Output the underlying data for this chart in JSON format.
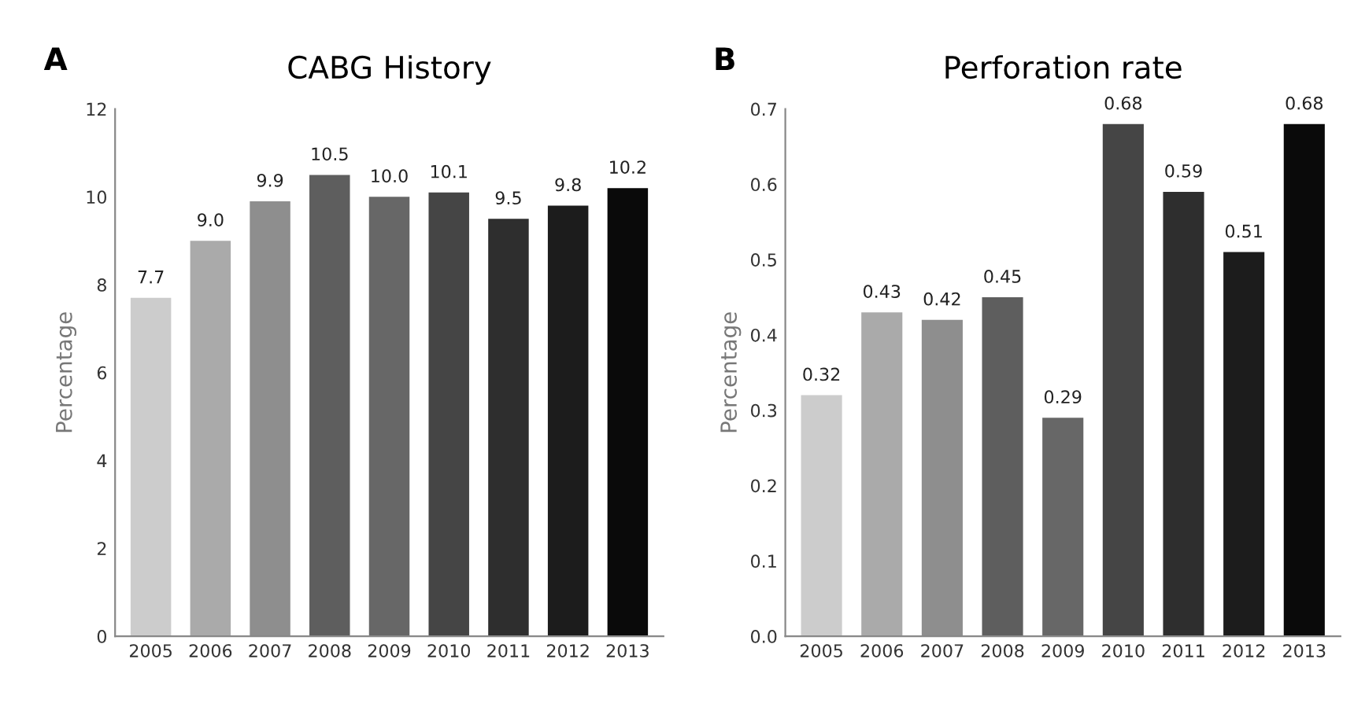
{
  "chart_data": [
    {
      "type": "bar",
      "title": "CABG History",
      "ylabel": "Percentage",
      "annotations": [
        "A"
      ],
      "categories": [
        "2005",
        "2006",
        "2007",
        "2008",
        "2009",
        "2010",
        "2011",
        "2012",
        "2013"
      ],
      "values": [
        7.7,
        9.0,
        9.9,
        10.5,
        10.0,
        10.1,
        9.5,
        9.8,
        10.2
      ],
      "value_labels": [
        "7.7",
        "9.0",
        "9.9",
        "10.5",
        "10.0",
        "10.1",
        "9.5",
        "9.8",
        "10.2"
      ],
      "colors": [
        "#cccccc",
        "#aaaaaa",
        "#8e8e8e",
        "#5e5e5e",
        "#676767",
        "#454545",
        "#2e2e2e",
        "#1c1c1c",
        "#0a0a0a"
      ],
      "ylim": [
        0,
        12
      ],
      "yticks": [
        0,
        2,
        4,
        6,
        8,
        10,
        12
      ],
      "grid": false
    },
    {
      "type": "bar",
      "title": "Perforation rate",
      "ylabel": "Percentage",
      "annotations": [
        "B"
      ],
      "categories": [
        "2005",
        "2006",
        "2007",
        "2008",
        "2009",
        "2010",
        "2011",
        "2012",
        "2013"
      ],
      "values": [
        0.32,
        0.43,
        0.42,
        0.45,
        0.29,
        0.68,
        0.59,
        0.51,
        0.68
      ],
      "value_labels": [
        "0.32",
        "0.43",
        "0.42",
        "0.45",
        "0.29",
        "0.68",
        "0.59",
        "0.51",
        "0.68"
      ],
      "colors": [
        "#cccccc",
        "#aaaaaa",
        "#8e8e8e",
        "#5e5e5e",
        "#676767",
        "#454545",
        "#2e2e2e",
        "#1c1c1c",
        "#0a0a0a"
      ],
      "ylim": [
        0,
        0.7
      ],
      "yticks": [
        {
          "value": 0,
          "label": "0.0"
        },
        0.1,
        0.2,
        0.3,
        0.4,
        0.5,
        0.6,
        0.7
      ],
      "grid": false
    }
  ]
}
